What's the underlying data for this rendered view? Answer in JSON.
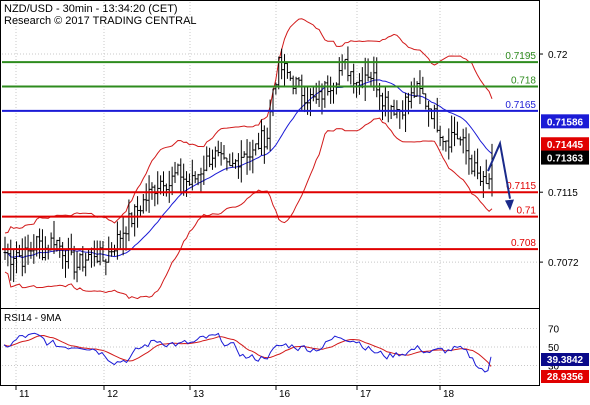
{
  "header": {
    "line1": "NZD/USD - 30min - 13:34:20 (CET)",
    "line2": "Research © 2017 TRADING CENTRAL"
  },
  "colors": {
    "green": "#2e8b1e",
    "blue": "#1b1bd6",
    "red": "#e00000",
    "candle": "#000000",
    "band": "#d21a1a",
    "ma": "#1b1bd6",
    "arrow": "#1a2a8a",
    "grid": "#c8c8c8",
    "price_badge_red": "#e00000",
    "price_badge_black": "#000000",
    "rsi_badge_blue": "#0a0a8a",
    "rsi_badge_red": "#e00000"
  },
  "chart_data": [
    {
      "type": "candlestick",
      "title": "NZD/USD - 30min",
      "ylim": [
        0.7045,
        0.7232
      ],
      "x_ticks": [
        "11",
        "12",
        "13",
        "16",
        "17",
        "18"
      ],
      "y_ticks": [
        0.7072,
        0.7115,
        0.72
      ],
      "levels": [
        {
          "value": 0.7195,
          "label": "0.7195",
          "color": "green"
        },
        {
          "value": 0.718,
          "label": "0.718",
          "color": "green"
        },
        {
          "value": 0.7165,
          "label": "0.7165",
          "color": "blue"
        },
        {
          "value": 0.7115,
          "label": "0.7115",
          "color": "red"
        },
        {
          "value": 0.71,
          "label": "0.71",
          "color": "red"
        },
        {
          "value": 0.708,
          "label": "0.708",
          "color": "red"
        }
      ],
      "price_badges": [
        {
          "value": 0.71586,
          "label": "0.71586",
          "color": "blue"
        },
        {
          "value": 0.71445,
          "label": "0.71445",
          "color": "red"
        },
        {
          "value": 0.71363,
          "label": "0.71363",
          "color": "black"
        }
      ],
      "arrow": {
        "from_value": 0.7145,
        "to_value": 0.7105,
        "direction": "down"
      },
      "close_path": [
        0.7078,
        0.7075,
        0.7079,
        0.7074,
        0.7077,
        0.7081,
        0.7085,
        0.7079,
        0.7083,
        0.7087,
        0.7082,
        0.7078,
        0.7073,
        0.7069,
        0.7072,
        0.7075,
        0.7079,
        0.7076,
        0.7073,
        0.7078,
        0.7083,
        0.7088,
        0.7094,
        0.7098,
        0.7103,
        0.7108,
        0.7112,
        0.7117,
        0.7121,
        0.7124,
        0.712,
        0.7125,
        0.7127,
        0.7122,
        0.712,
        0.7125,
        0.713,
        0.7135,
        0.7139,
        0.7135,
        0.7131,
        0.7128,
        0.7133,
        0.7138,
        0.7141,
        0.7137,
        0.7143,
        0.7148,
        0.715,
        0.718,
        0.7192,
        0.719,
        0.7186,
        0.7182,
        0.7178,
        0.7175,
        0.7172,
        0.717,
        0.7176,
        0.7181,
        0.7185,
        0.7189,
        0.7193,
        0.719,
        0.7186,
        0.7183,
        0.719,
        0.7187,
        0.7182,
        0.7174,
        0.717,
        0.7168,
        0.7165,
        0.717,
        0.7172,
        0.7177,
        0.7176,
        0.717,
        0.7165,
        0.7158,
        0.715,
        0.7148,
        0.7152,
        0.7148,
        0.7142,
        0.7135,
        0.7127,
        0.7121,
        0.7118,
        0.713
      ]
    },
    {
      "type": "line",
      "title": "RSI14 - 9MA",
      "ylim": [
        10,
        90
      ],
      "y_ticks": [
        30,
        50,
        70
      ],
      "series": [
        {
          "name": "RSI14",
          "color": "blue",
          "last": 39.3842
        },
        {
          "name": "9MA",
          "color": "red",
          "last": 28.9356
        }
      ]
    }
  ],
  "rsi": {
    "label": "RSI14 - 9MA",
    "rsi_value": "39.3842",
    "ma_value": "28.9356",
    "tick_labels": [
      "70",
      "50",
      "30"
    ]
  }
}
